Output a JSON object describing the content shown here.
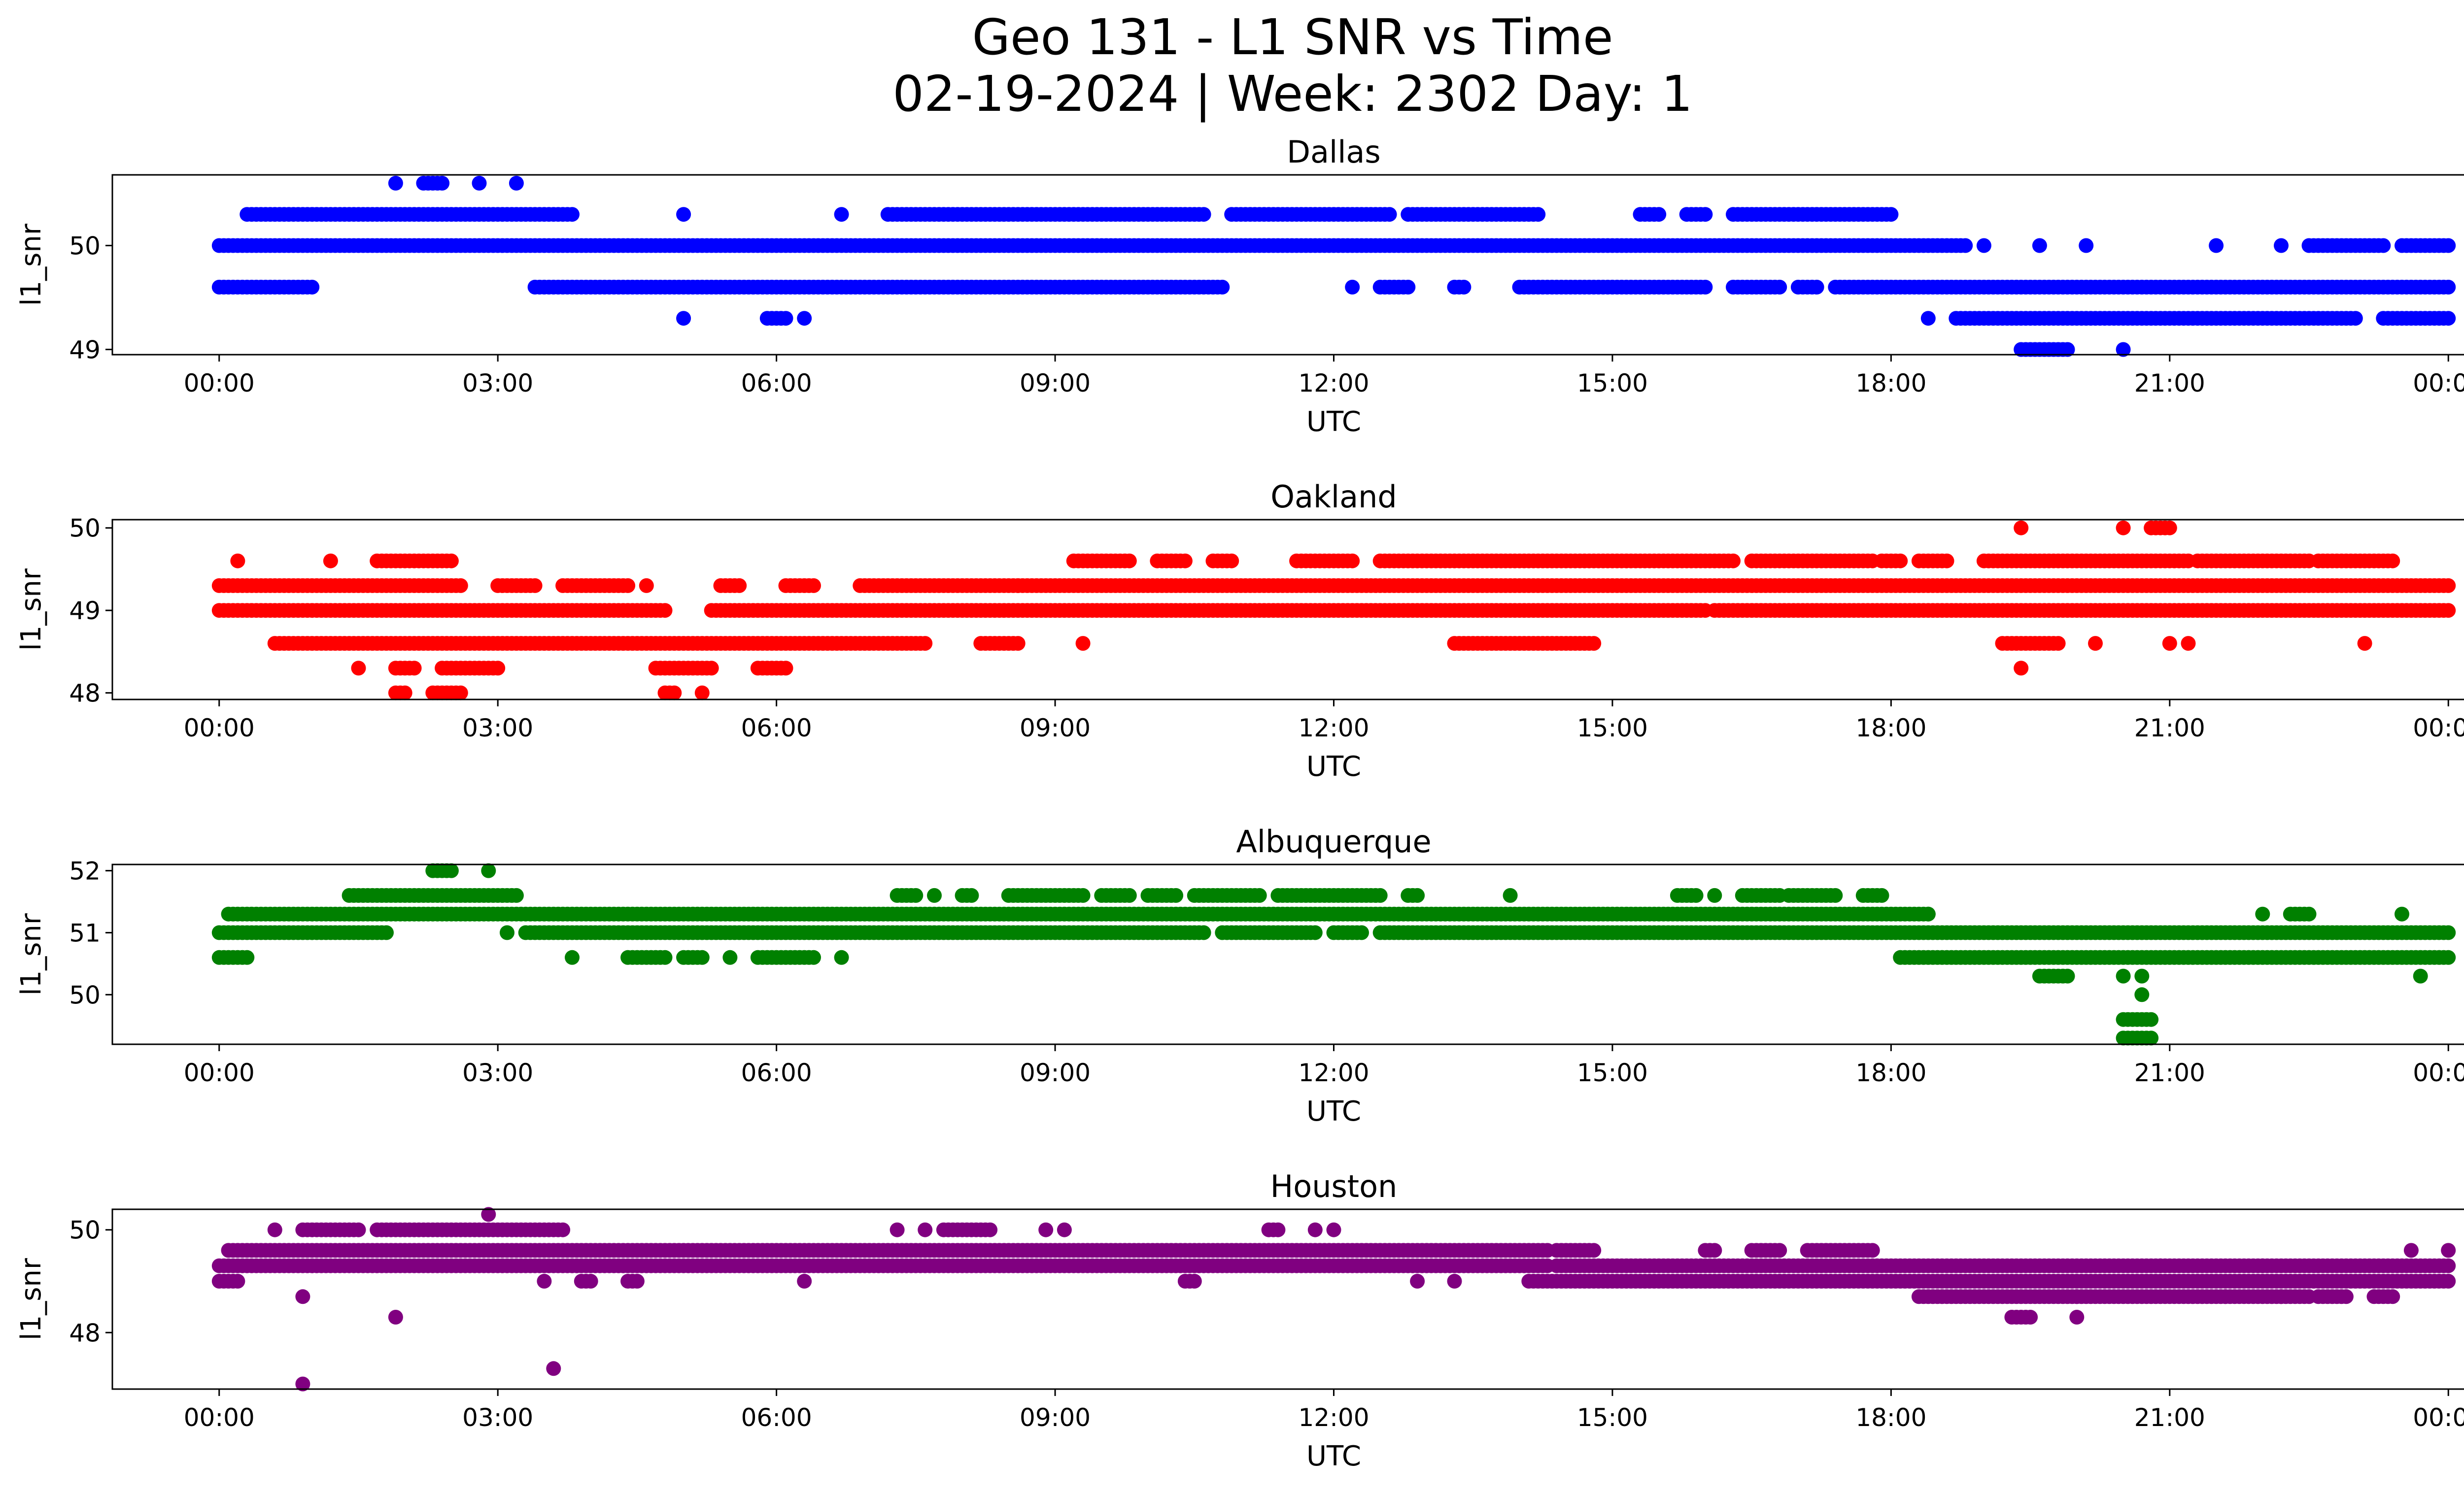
{
  "chart_data": {
    "type": "scatter",
    "title": "Geo 131 - L1 SNR vs Time",
    "subtitle": "02-19-2024 | Week: 2302 Day: 1",
    "x_tick_labels": [
      "00:00",
      "03:00",
      "06:00",
      "09:00",
      "12:00",
      "15:00",
      "18:00",
      "21:00",
      "00:00"
    ],
    "x_tick_hours": [
      0,
      3,
      6,
      9,
      12,
      15,
      18,
      21,
      24
    ],
    "x_range_hours": [
      -1.15,
      25.15
    ],
    "panels": [
      {
        "name": "Dallas",
        "title": "Dallas",
        "color": "#0000ff",
        "xlabel": "UTC",
        "ylabel": "l1_snr",
        "ylim": [
          48.95,
          50.68
        ],
        "y_ticks": [
          49,
          50
        ],
        "y_tick_labels": [
          "49",
          "50"
        ],
        "clusters": [
          {
            "y": 50.0,
            "segments": [
              [
                0,
                18.8
              ],
              [
                19.0,
                19.0
              ],
              [
                19.6,
                19.6
              ],
              [
                20.1,
                20.1
              ],
              [
                21.5,
                21.5
              ],
              [
                22.2,
                22.2
              ],
              [
                22.5,
                23.3
              ],
              [
                23.5,
                24.0
              ]
            ]
          },
          {
            "y": 49.6,
            "segments": [
              [
                0,
                1.0
              ],
              [
                3.4,
                10.8
              ],
              [
                12.2,
                12.2
              ],
              [
                12.5,
                12.8
              ],
              [
                13.3,
                13.4
              ],
              [
                14.0,
                16.0
              ],
              [
                16.3,
                16.8
              ],
              [
                17.0,
                17.2
              ],
              [
                17.4,
                24.0
              ]
            ]
          },
          {
            "y": 50.3,
            "segments": [
              [
                0.3,
                3.8
              ],
              [
                5.0,
                5.0
              ],
              [
                6.7,
                6.7
              ],
              [
                7.2,
                10.6
              ],
              [
                10.9,
                12.6
              ],
              [
                12.8,
                14.2
              ],
              [
                15.3,
                15.5
              ],
              [
                15.8,
                16.0
              ],
              [
                16.3,
                18.0
              ]
            ]
          },
          {
            "y": 49.3,
            "segments": [
              [
                5.0,
                5.0
              ],
              [
                5.9,
                6.1
              ],
              [
                6.3,
                6.3
              ],
              [
                18.4,
                18.4
              ],
              [
                18.7,
                23.0
              ],
              [
                23.3,
                24.0
              ]
            ]
          },
          {
            "y": 50.6,
            "segments": [
              [
                1.9,
                1.9
              ],
              [
                2.2,
                2.4
              ],
              [
                2.8,
                2.8
              ],
              [
                3.2,
                3.2
              ]
            ]
          },
          {
            "y": 49.0,
            "segments": [
              [
                19.4,
                19.9
              ],
              [
                20.5,
                20.5
              ]
            ]
          }
        ]
      },
      {
        "name": "Oakland",
        "title": "Oakland",
        "color": "#ff0000",
        "xlabel": "UTC",
        "ylabel": "l1_snr",
        "ylim": [
          47.92,
          50.1
        ],
        "y_ticks": [
          48,
          49,
          50
        ],
        "y_tick_labels": [
          "48",
          "49",
          "50"
        ],
        "clusters": [
          {
            "y": 49.0,
            "segments": [
              [
                0,
                4.8
              ],
              [
                5.3,
                16.0
              ],
              [
                16.1,
                24.0
              ]
            ]
          },
          {
            "y": 49.3,
            "segments": [
              [
                0,
                2.6
              ],
              [
                3.0,
                3.4
              ],
              [
                3.7,
                4.4
              ],
              [
                4.6,
                4.6
              ],
              [
                5.4,
                5.6
              ],
              [
                6.1,
                6.4
              ],
              [
                6.9,
                8.6
              ],
              [
                8.6,
                24.0
              ]
            ]
          },
          {
            "y": 48.6,
            "segments": [
              [
                0.6,
                7.6
              ],
              [
                8.2,
                8.6
              ],
              [
                9.3,
                9.3
              ],
              [
                13.3,
                14.8
              ],
              [
                19.2,
                19.8
              ],
              [
                20.2,
                20.2
              ],
              [
                21.0,
                21.0
              ],
              [
                21.2,
                21.2
              ],
              [
                23.1,
                23.1
              ]
            ]
          },
          {
            "y": 49.6,
            "segments": [
              [
                0.2,
                0.2
              ],
              [
                1.2,
                1.2
              ],
              [
                1.7,
                2.5
              ],
              [
                9.2,
                9.8
              ],
              [
                10.1,
                10.4
              ],
              [
                10.7,
                10.9
              ],
              [
                11.6,
                12.2
              ],
              [
                12.5,
                16.3
              ],
              [
                16.5,
                17.8
              ],
              [
                17.9,
                18.1
              ],
              [
                18.3,
                18.6
              ],
              [
                19.0,
                21.2
              ],
              [
                21.3,
                22.5
              ],
              [
                22.6,
                23.4
              ]
            ]
          },
          {
            "y": 48.3,
            "segments": [
              [
                1.5,
                1.5
              ],
              [
                1.9,
                2.1
              ],
              [
                2.4,
                3.0
              ],
              [
                4.7,
                5.3
              ],
              [
                5.8,
                6.1
              ],
              [
                19.4,
                19.4
              ]
            ]
          },
          {
            "y": 48.0,
            "segments": [
              [
                1.9,
                2.0
              ],
              [
                2.3,
                2.6
              ],
              [
                4.8,
                4.9
              ],
              [
                5.2,
                5.2
              ]
            ]
          },
          {
            "y": 50.0,
            "segments": [
              [
                19.4,
                19.4
              ],
              [
                20.5,
                20.5
              ],
              [
                20.8,
                21.0
              ]
            ]
          }
        ]
      },
      {
        "name": "Albuquerque",
        "title": "Albuquerque",
        "color": "#008000",
        "xlabel": "UTC",
        "ylabel": "l1_snr",
        "ylim": [
          49.2,
          52.1
        ],
        "y_ticks": [
          50,
          51,
          52
        ],
        "y_tick_labels": [
          "50",
          "51",
          "52"
        ],
        "clusters": [
          {
            "y": 51.0,
            "segments": [
              [
                0,
                1.8
              ],
              [
                3.1,
                3.1
              ],
              [
                3.3,
                10.6
              ],
              [
                10.8,
                11.8
              ],
              [
                12.0,
                12.3
              ],
              [
                12.5,
                24.0
              ]
            ]
          },
          {
            "y": 51.3,
            "segments": [
              [
                0.1,
                18.4
              ],
              [
                18.4,
                18.4
              ]
            ]
          },
          {
            "y": 50.6,
            "segments": [
              [
                0,
                0.3
              ],
              [
                3.8,
                3.8
              ],
              [
                4.4,
                4.8
              ],
              [
                5.0,
                5.2
              ],
              [
                5.5,
                5.5
              ],
              [
                5.8,
                6.4
              ],
              [
                6.7,
                6.7
              ],
              [
                18.1,
                24.0
              ]
            ]
          },
          {
            "y": 51.6,
            "segments": [
              [
                1.4,
                3.2
              ],
              [
                7.3,
                7.5
              ],
              [
                7.7,
                7.7
              ],
              [
                8.0,
                8.1
              ],
              [
                8.5,
                9.3
              ],
              [
                9.5,
                9.8
              ],
              [
                10.0,
                10.3
              ],
              [
                10.5,
                11.2
              ],
              [
                11.4,
                12.5
              ],
              [
                12.8,
                12.9
              ],
              [
                13.9,
                13.9
              ],
              [
                15.7,
                15.9
              ],
              [
                16.1,
                16.1
              ],
              [
                16.4,
                16.8
              ],
              [
                16.9,
                17.4
              ],
              [
                17.7,
                17.9
              ]
            ]
          },
          {
            "y": 52.0,
            "segments": [
              [
                2.3,
                2.5
              ],
              [
                2.9,
                2.9
              ]
            ]
          },
          {
            "y": 50.3,
            "segments": [
              [
                19.6,
                19.9
              ],
              [
                20.5,
                20.5
              ],
              [
                20.7,
                20.7
              ],
              [
                23.7,
                23.7
              ]
            ]
          },
          {
            "y": 49.6,
            "segments": [
              [
                20.5,
                20.8
              ]
            ]
          },
          {
            "y": 49.3,
            "segments": [
              [
                20.5,
                20.8
              ]
            ]
          },
          {
            "y": 50.0,
            "segments": [
              [
                20.7,
                20.7
              ]
            ]
          },
          {
            "y": 51.3,
            "segments": [
              [
                22.0,
                22.0
              ],
              [
                22.3,
                22.5
              ],
              [
                23.5,
                23.5
              ]
            ]
          }
        ]
      },
      {
        "name": "Houston",
        "title": "Houston",
        "color": "#800080",
        "xlabel": "UTC",
        "ylabel": "l1_snr",
        "ylim": [
          46.9,
          50.4
        ],
        "y_ticks": [
          48,
          50
        ],
        "y_tick_labels": [
          "48",
          "50"
        ],
        "clusters": [
          {
            "y": 49.3,
            "segments": [
              [
                0,
                14.3
              ],
              [
                14.4,
                24.0
              ]
            ]
          },
          {
            "y": 49.6,
            "segments": [
              [
                0.1,
                14.3
              ],
              [
                14.4,
                14.8
              ],
              [
                16.0,
                16.1
              ],
              [
                16.5,
                16.8
              ],
              [
                17.1,
                17.8
              ],
              [
                23.6,
                23.6
              ],
              [
                24.0,
                24.0
              ]
            ]
          },
          {
            "y": 49.0,
            "segments": [
              [
                0,
                0.2
              ],
              [
                3.5,
                3.5
              ],
              [
                3.9,
                4.0
              ],
              [
                4.4,
                4.5
              ],
              [
                6.3,
                6.3
              ],
              [
                10.4,
                10.5
              ],
              [
                12.9,
                12.9
              ],
              [
                13.3,
                13.3
              ],
              [
                14.1,
                24.0
              ]
            ]
          },
          {
            "y": 50.0,
            "segments": [
              [
                0.6,
                0.6
              ],
              [
                0.9,
                1.5
              ],
              [
                1.7,
                3.7
              ],
              [
                7.3,
                7.3
              ],
              [
                7.6,
                7.6
              ],
              [
                7.8,
                8.3
              ],
              [
                8.9,
                8.9
              ],
              [
                9.1,
                9.1
              ],
              [
                11.3,
                11.4
              ],
              [
                11.8,
                11.8
              ],
              [
                12.0,
                12.0
              ]
            ]
          },
          {
            "y": 48.7,
            "segments": [
              [
                0.9,
                0.9
              ],
              [
                18.3,
                20.0
              ],
              [
                20.0,
                21.6
              ],
              [
                21.6,
                22.2
              ],
              [
                22.2,
                22.5
              ],
              [
                22.6,
                22.9
              ],
              [
                23.2,
                23.4
              ]
            ]
          },
          {
            "y": 48.3,
            "segments": [
              [
                1.9,
                1.9
              ],
              [
                19.3,
                19.5
              ],
              [
                20.0,
                20.0
              ]
            ]
          },
          {
            "y": 50.3,
            "segments": [
              [
                2.9,
                2.9
              ]
            ]
          },
          {
            "y": 47.3,
            "segments": [
              [
                3.6,
                3.6
              ]
            ]
          },
          {
            "y": 47.0,
            "segments": [
              [
                0.9,
                0.9
              ]
            ]
          },
          {
            "y": 49.3,
            "segments": [
              [
                20.9,
                20.9
              ],
              [
                22.0,
                22.0
              ]
            ]
          }
        ]
      }
    ]
  }
}
